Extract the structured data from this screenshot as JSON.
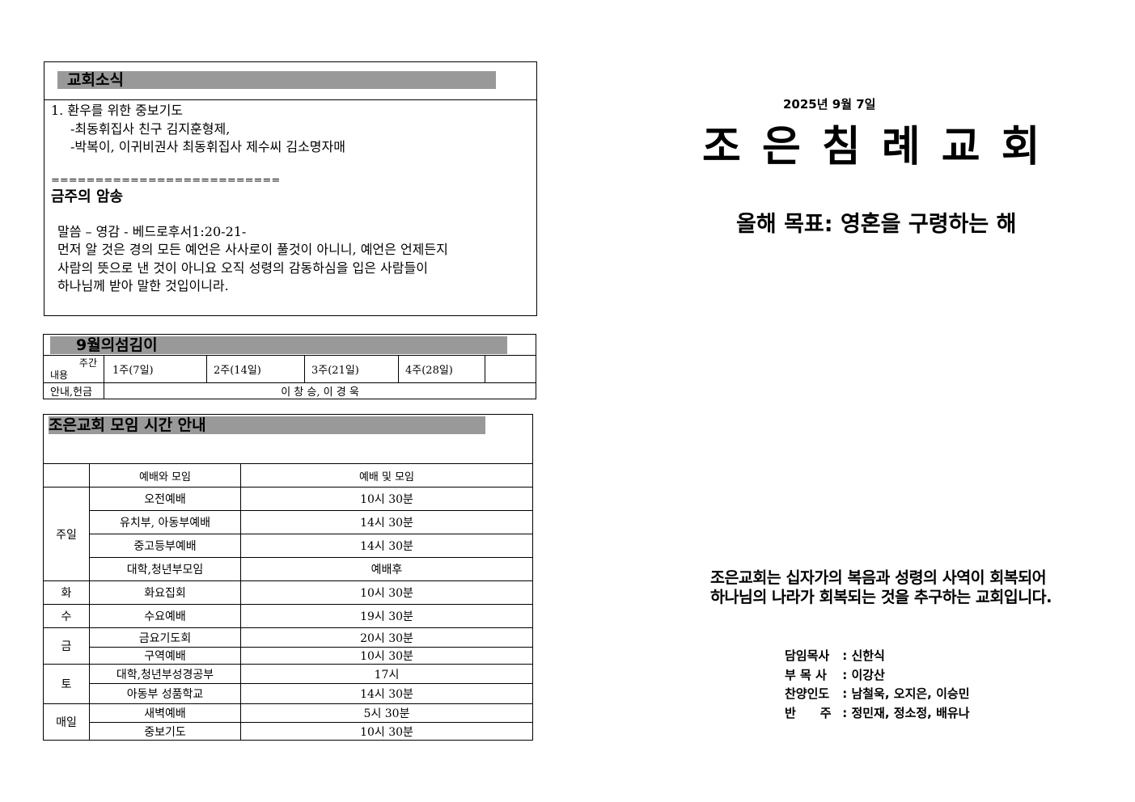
{
  "news": {
    "title": "교회소식",
    "lines": [
      "1. 환우를 위한 중보기도",
      "-최동휘집사 친구 김지훈형제,",
      "-박복이, 이귀비권사 최동휘집사 제수씨 김소명자매"
    ],
    "divider": "==========================",
    "memory_title": "금주의 암송",
    "verse_ref": "말씀 – 영감 - 베드로후서1:20-21-",
    "verse_lines": [
      "먼저 알 것은 경의 모든 예언은 사사로이 풀것이 아니니, 예언은 언제든지",
      "사람의 뜻으로 낸 것이 아니요 오직 성령의 감동하심을 입은 사람들이",
      "하나님께 받아 말한 것입이니라."
    ]
  },
  "service": {
    "title": "9월의섬김이",
    "corner_top": "주간",
    "corner_bottom": "내용",
    "weeks": [
      "1주(7일)",
      "2주(14일)",
      "3주(21일)",
      "4주(28일)",
      ""
    ],
    "row_label": "안내,헌금",
    "row_value": "이 창 승, 이 경 욱"
  },
  "schedule": {
    "title": "조은교회 모임 시간 안내",
    "headers": [
      "",
      "예배와 모임",
      "예배 및 모임"
    ],
    "groups": [
      {
        "day": "주일",
        "rows": [
          [
            "오전예배",
            "10시 30분"
          ],
          [
            "유치부, 아동부예배",
            "14시 30분"
          ],
          [
            "중고등부예배",
            "14시 30분"
          ],
          [
            "대학,청년부모임",
            "예배후"
          ]
        ]
      },
      {
        "day": "화",
        "rows": [
          [
            "화요집회",
            "10시 30분"
          ]
        ]
      },
      {
        "day": "수",
        "rows": [
          [
            "수요예배",
            "19시 30분"
          ]
        ]
      },
      {
        "day": "금",
        "rows": [
          [
            "금요기도회",
            "20시 30분"
          ],
          [
            "구역예배",
            "10시 30분"
          ]
        ]
      },
      {
        "day": "토",
        "rows": [
          [
            "대학,청년부성경공부",
            "17시"
          ],
          [
            "아동부 성품학교",
            "14시 30분"
          ]
        ]
      },
      {
        "day": "매일",
        "rows": [
          [
            "새벽예배",
            "5시 30분"
          ],
          [
            "중보기도",
            "10시 30분"
          ]
        ]
      }
    ]
  },
  "cover": {
    "date": "2025년 9월 7일",
    "church": "조 은 침 례 교 회",
    "goal": "올해 목표: 영혼을 구령하는 해",
    "mission": [
      "조은교회는 십자가의 복음과 성령의 사역이 회복되어",
      "하나님의 나라가 회복되는 것을 추구하는 교회입니다."
    ],
    "staff": [
      {
        "role": "담임목사",
        "name": "신한식"
      },
      {
        "role": "부 목 사",
        "name": "이강산"
      },
      {
        "role": "찬양인도",
        "name": "남철욱, 오지은, 이승민"
      },
      {
        "role": "반　　주",
        "name": "정민재, 정소정, 배유나"
      }
    ]
  }
}
